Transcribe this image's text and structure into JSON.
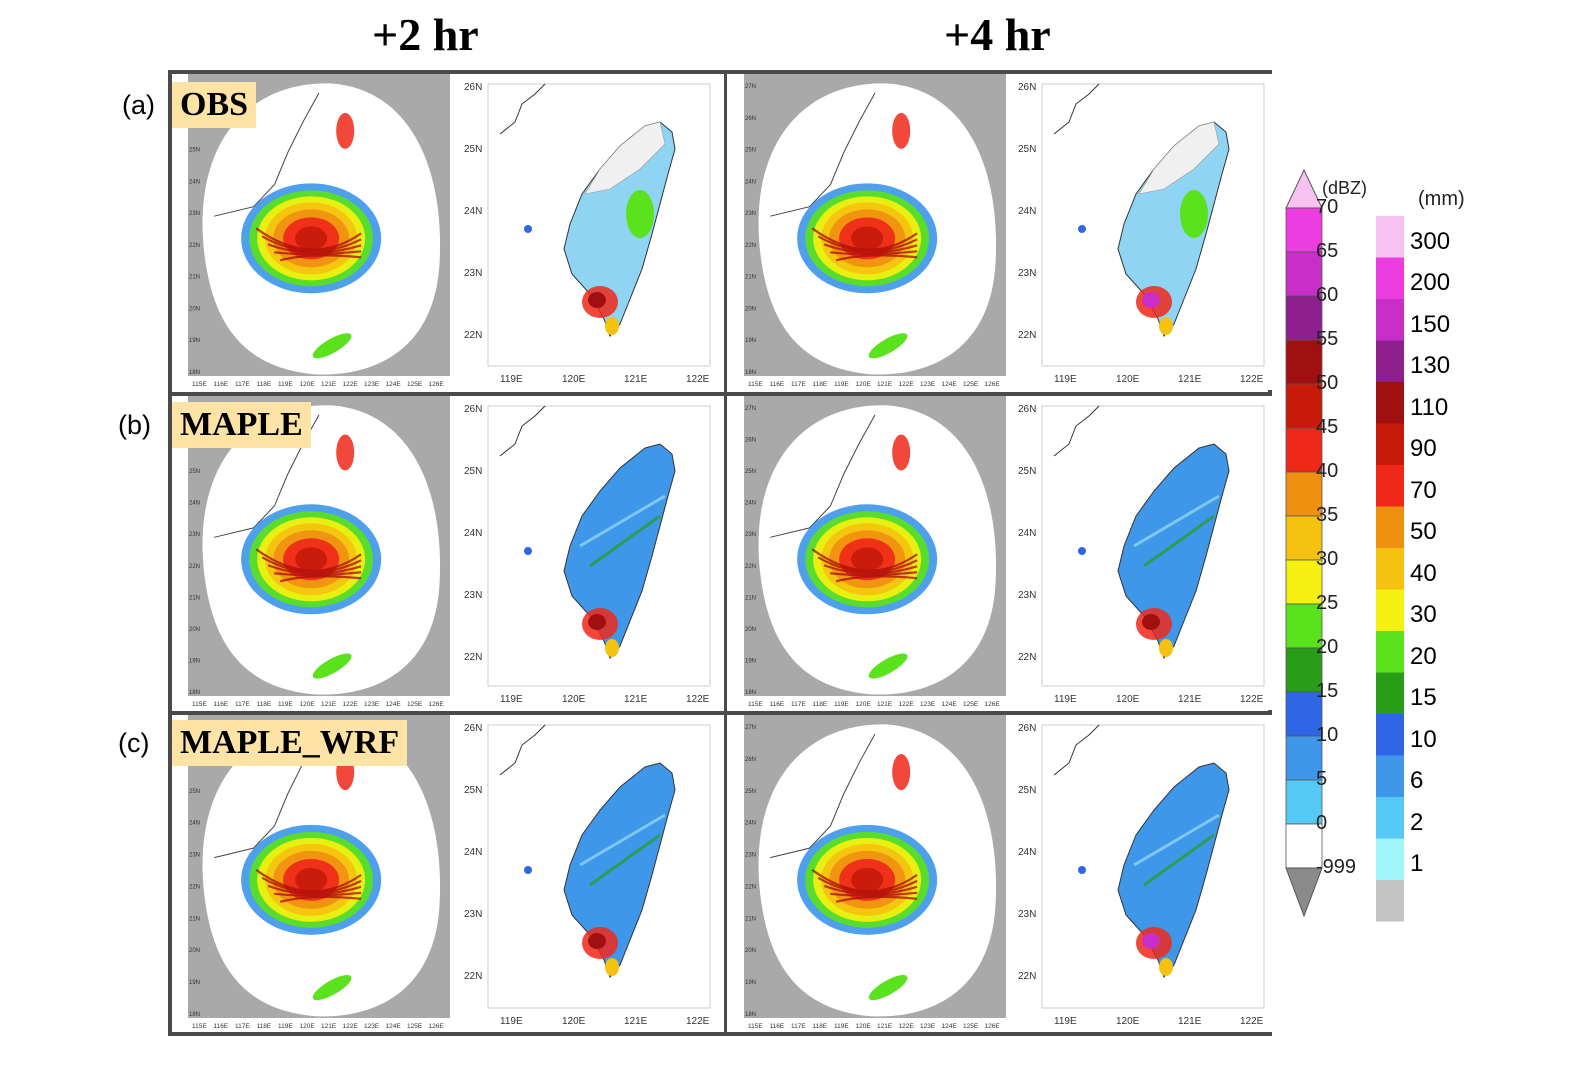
{
  "columns": [
    "+2 hr",
    "+4 hr"
  ],
  "rows": [
    {
      "letter": "(a)",
      "label": "OBS"
    },
    {
      "letter": "(b)",
      "label": "MAPLE"
    },
    {
      "letter": "(c)",
      "label": "MAPLE_WRF"
    }
  ],
  "radar_lon_ticks": [
    "115E",
    "116E",
    "117E",
    "118E",
    "119E",
    "120E",
    "121E",
    "122E",
    "123E",
    "124E",
    "125E",
    "126E"
  ],
  "radar_lat_ticks": [
    "18N",
    "19N",
    "20N",
    "21N",
    "22N",
    "23N",
    "24N",
    "25N",
    "26N",
    "27N"
  ],
  "rain_lon_ticks": [
    "119E",
    "120E",
    "121E",
    "122E"
  ],
  "rain_lat_ticks": [
    "26N",
    "25N",
    "24N",
    "23N",
    "22N"
  ],
  "dbz_colorbar": {
    "unit": "(dBZ)",
    "labels": [
      "70",
      "65",
      "60",
      "55",
      "50",
      "45",
      "40",
      "35",
      "30",
      "25",
      "20",
      "15",
      "10",
      "5",
      "0",
      "-999"
    ],
    "colors": [
      "#f7c2f2",
      "#ec3ee0",
      "#c82fc8",
      "#8e208e",
      "#a01010",
      "#c81a0a",
      "#f0281a",
      "#f09010",
      "#f5c20f",
      "#f5f00f",
      "#5ae21c",
      "#2a9d18",
      "#2e66e6",
      "#3f97ea",
      "#55c9f5",
      "#ffffff"
    ]
  },
  "mm_colorbar": {
    "unit": "(mm)",
    "labels": [
      "300",
      "200",
      "150",
      "130",
      "110",
      "90",
      "70",
      "50",
      "40",
      "30",
      "20",
      "15",
      "10",
      "6",
      "2",
      "1"
    ],
    "colors": [
      "#f7c2f2",
      "#ec3ee0",
      "#c82fc8",
      "#8e208e",
      "#a01010",
      "#c81a0a",
      "#f0281a",
      "#f09010",
      "#f5c20f",
      "#f5f00f",
      "#5ae21c",
      "#2a9d18",
      "#2e66e6",
      "#3f97ea",
      "#55c9f5",
      "#9ff5f8",
      "#c4c4c4"
    ]
  }
}
